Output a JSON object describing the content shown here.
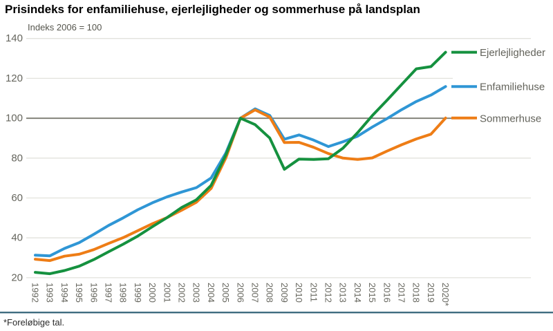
{
  "header": {
    "title": "Prisindeks for enfamiliehuse, ejerlejligheder og sommerhuse på landsplan"
  },
  "footer": {
    "note": "*Foreløbige tal."
  },
  "chart_data": {
    "type": "line",
    "title": "Prisindeks for enfamiliehuse, ejerlejligheder og sommerhuse på landsplan",
    "subtitle": "Indeks 2006 = 100",
    "xlabel": "",
    "ylabel": "Indeks 2006 = 100",
    "ylim": [
      20,
      140
    ],
    "y_ticks": [
      140,
      120,
      100,
      80,
      60,
      40,
      20
    ],
    "highlight_gridline": 100,
    "grid": true,
    "legend_position": "right-at-line-end",
    "x": [
      1992,
      1993,
      1994,
      1995,
      1996,
      1997,
      1998,
      1999,
      2000,
      2001,
      2002,
      2003,
      2004,
      2005,
      2006,
      2007,
      2008,
      2009,
      2010,
      2011,
      2012,
      2013,
      2014,
      2015,
      2016,
      2017,
      2018,
      2019,
      2020
    ],
    "x_tick_labels": [
      "1992",
      "1993",
      "1994",
      "1995",
      "1996",
      "1997",
      "1998",
      "1999",
      "2000",
      "2001",
      "2002",
      "2003",
      "2004",
      "2005",
      "2006",
      "2007",
      "2008",
      "2009",
      "2010",
      "2011",
      "2012",
      "2013",
      "2014",
      "2015",
      "2016",
      "2017",
      "2018",
      "2019",
      "2020*"
    ],
    "series": [
      {
        "name": "Ejerlejligheder",
        "color": "#15913f",
        "values": [
          22.7,
          22.0,
          23.6,
          25.8,
          29.1,
          33.0,
          36.8,
          40.9,
          45.6,
          50.2,
          55.3,
          59.1,
          66.3,
          81.5,
          100.0,
          96.8,
          90.1,
          74.4,
          79.5,
          79.3,
          79.7,
          85.0,
          92.8,
          101.3,
          109.0,
          116.9,
          124.8,
          125.9,
          133.1
        ]
      },
      {
        "name": "Enfamiliehuse",
        "color": "#2f96d5",
        "values": [
          31.3,
          31.0,
          34.7,
          37.6,
          41.8,
          46.2,
          50.0,
          54.1,
          57.6,
          60.6,
          63.0,
          65.2,
          70.0,
          82.5,
          100.0,
          104.7,
          101.4,
          89.5,
          91.6,
          89.0,
          85.8,
          88.2,
          91.0,
          95.6,
          99.8,
          104.3,
          108.4,
          111.6,
          115.9
        ]
      },
      {
        "name": "Sommerhuse",
        "color": "#ee7d16",
        "values": [
          29.3,
          28.6,
          30.8,
          31.8,
          34.1,
          37.2,
          40.1,
          43.6,
          47.1,
          50.2,
          53.9,
          57.9,
          64.8,
          80.0,
          100.0,
          104.2,
          100.6,
          87.8,
          87.9,
          85.4,
          82.3,
          80.0,
          79.3,
          80.1,
          83.5,
          86.7,
          89.6,
          92.0,
          100.1
        ]
      }
    ]
  },
  "colors": {
    "grid_light": "#e2e2dc",
    "grid_dark": "#83837a",
    "axis_line": "#3f6d80",
    "tick_text": "#66665e",
    "legend_text": "#63635b"
  }
}
